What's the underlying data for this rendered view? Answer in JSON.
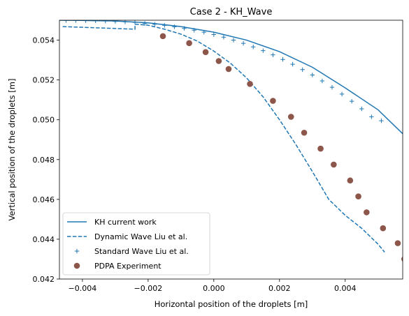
{
  "chart_data": {
    "type": "line",
    "title": "Case 2 - KH_Wave",
    "xlabel": "Horizontal position of the droplets [m]",
    "ylabel": "Vertical position of the droplets [m]",
    "xlim": [
      -0.0047,
      0.00575
    ],
    "ylim": [
      0.042,
      0.055
    ],
    "x_ticks": [
      -0.004,
      -0.002,
      0.0,
      0.002,
      0.004
    ],
    "x_tick_labels": [
      "−0.004",
      "−0.002",
      "0.000",
      "0.002",
      "0.004"
    ],
    "y_ticks": [
      0.042,
      0.044,
      0.046,
      0.048,
      0.05,
      0.052,
      0.054
    ],
    "y_tick_labels": [
      "0.042",
      "0.044",
      "0.046",
      "0.048",
      "0.050",
      "0.052",
      "0.054"
    ],
    "grid": false,
    "legend_position": "lower-left",
    "series": [
      {
        "name": "KH current work",
        "style": "solid",
        "color": "#1f77b4",
        "x": [
          -0.0047,
          -0.004,
          -0.003,
          -0.002,
          -0.001,
          0.0,
          0.001,
          0.002,
          0.003,
          0.004,
          0.005,
          0.00575
        ],
        "y": [
          0.055,
          0.05499,
          0.05496,
          0.05487,
          0.05468,
          0.0544,
          0.054,
          0.05342,
          0.05264,
          0.0516,
          0.0505,
          0.0493
        ]
      },
      {
        "name": "Dynamic Wave Liu et al.",
        "style": "dashed",
        "color": "#1f77b4",
        "x": [
          -0.0046,
          -0.0024,
          -0.0024,
          -0.002,
          -0.0015,
          -0.001,
          -0.0005,
          0.0,
          0.0005,
          0.001,
          0.0015,
          0.002,
          0.0025,
          0.003,
          0.0035,
          0.004,
          0.0045,
          0.005,
          0.0052
        ],
        "y": [
          0.05468,
          0.05455,
          0.0548,
          0.05475,
          0.05455,
          0.0543,
          0.05395,
          0.05345,
          0.05285,
          0.0521,
          0.05115,
          0.05,
          0.04875,
          0.0474,
          0.046,
          0.0452,
          0.04455,
          0.04375,
          0.04335
        ]
      },
      {
        "name": "Standard Wave Liu et al.",
        "style": "plus",
        "color": "#1f77b4",
        "x": [
          -0.0045,
          -0.0042,
          -0.0039,
          -0.0036,
          -0.0033,
          -0.003,
          -0.0027,
          -0.0024,
          -0.0021,
          -0.0018,
          -0.0015,
          -0.0012,
          -0.0009,
          -0.0006,
          -0.0003,
          0.0,
          0.0003,
          0.0006,
          0.0009,
          0.0012,
          0.0015,
          0.0018,
          0.0021,
          0.0024,
          0.0027,
          0.003,
          0.0033,
          0.0036,
          0.0039,
          0.0042,
          0.0045,
          0.0048,
          0.0051
        ],
        "y": [
          0.05499,
          0.05499,
          0.05498,
          0.05497,
          0.05496,
          0.05494,
          0.05492,
          0.05489,
          0.05484,
          0.0548,
          0.05474,
          0.05467,
          0.05459,
          0.0545,
          0.0544,
          0.05428,
          0.05415,
          0.054,
          0.05384,
          0.05366,
          0.05347,
          0.05326,
          0.05303,
          0.05279,
          0.05252,
          0.05225,
          0.05195,
          0.05163,
          0.05129,
          0.05093,
          0.05055,
          0.05015,
          0.04995
        ]
      },
      {
        "name": "PDPA Experiment",
        "style": "circle",
        "color": "#8c564b",
        "x": [
          -0.00155,
          -0.00075,
          -0.00025,
          0.00015,
          0.00045,
          0.0011,
          0.0018,
          0.00235,
          0.00275,
          0.00325,
          0.00365,
          0.00415,
          0.0044,
          0.00465,
          0.00515,
          0.0056,
          0.0058
        ],
        "y": [
          0.0542,
          0.05385,
          0.0534,
          0.05295,
          0.05255,
          0.0518,
          0.05095,
          0.05015,
          0.04935,
          0.04855,
          0.04775,
          0.04695,
          0.04615,
          0.04535,
          0.04455,
          0.0438,
          0.043
        ]
      }
    ]
  }
}
